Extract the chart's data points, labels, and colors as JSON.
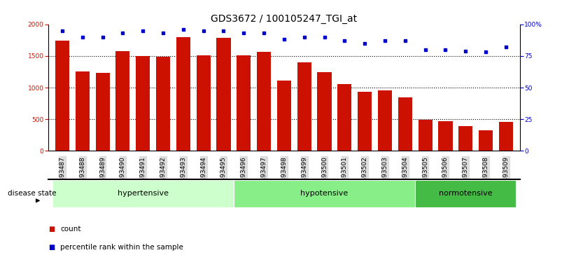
{
  "title": "GDS3672 / 100105247_TGI_at",
  "categories": [
    "GSM493487",
    "GSM493488",
    "GSM493489",
    "GSM493490",
    "GSM493491",
    "GSM493492",
    "GSM493493",
    "GSM493494",
    "GSM493495",
    "GSM493496",
    "GSM493497",
    "GSM493498",
    "GSM493499",
    "GSM493500",
    "GSM493501",
    "GSM493502",
    "GSM493503",
    "GSM493504",
    "GSM493505",
    "GSM493506",
    "GSM493507",
    "GSM493508",
    "GSM493509"
  ],
  "counts": [
    1740,
    1250,
    1230,
    1580,
    1500,
    1490,
    1800,
    1510,
    1790,
    1510,
    1570,
    1110,
    1400,
    1240,
    1055,
    930,
    960,
    840,
    490,
    465,
    390,
    320,
    460
  ],
  "percentile_ranks": [
    95,
    90,
    90,
    93,
    95,
    93,
    96,
    95,
    95,
    93,
    93,
    88,
    90,
    90,
    87,
    85,
    87,
    87,
    80,
    80,
    79,
    78,
    82
  ],
  "groups": [
    {
      "label": "hypertensive",
      "start": 0,
      "end": 9,
      "color": "#ccffcc"
    },
    {
      "label": "hypotensive",
      "start": 9,
      "end": 18,
      "color": "#88ee88"
    },
    {
      "label": "normotensive",
      "start": 18,
      "end": 23,
      "color": "#44bb44"
    }
  ],
  "bar_color": "#cc1100",
  "dot_color": "#0000cc",
  "left_ylim": [
    0,
    2000
  ],
  "right_ylim": [
    0,
    100
  ],
  "left_yticks": [
    0,
    500,
    1000,
    1500,
    2000
  ],
  "right_yticks": [
    0,
    25,
    50,
    75,
    100
  ],
  "right_yticklabels": [
    "0",
    "25",
    "50",
    "75",
    "100%"
  ],
  "background_color": "#ffffff",
  "grid_color": "#000000",
  "title_fontsize": 10,
  "tick_fontsize": 6.5,
  "label_fontsize": 7.5,
  "group_label_fontsize": 8,
  "disease_state_label": "disease state",
  "legend_count_label": "count",
  "legend_percentile_label": "percentile rank within the sample",
  "xticklabel_bg": "#dddddd"
}
